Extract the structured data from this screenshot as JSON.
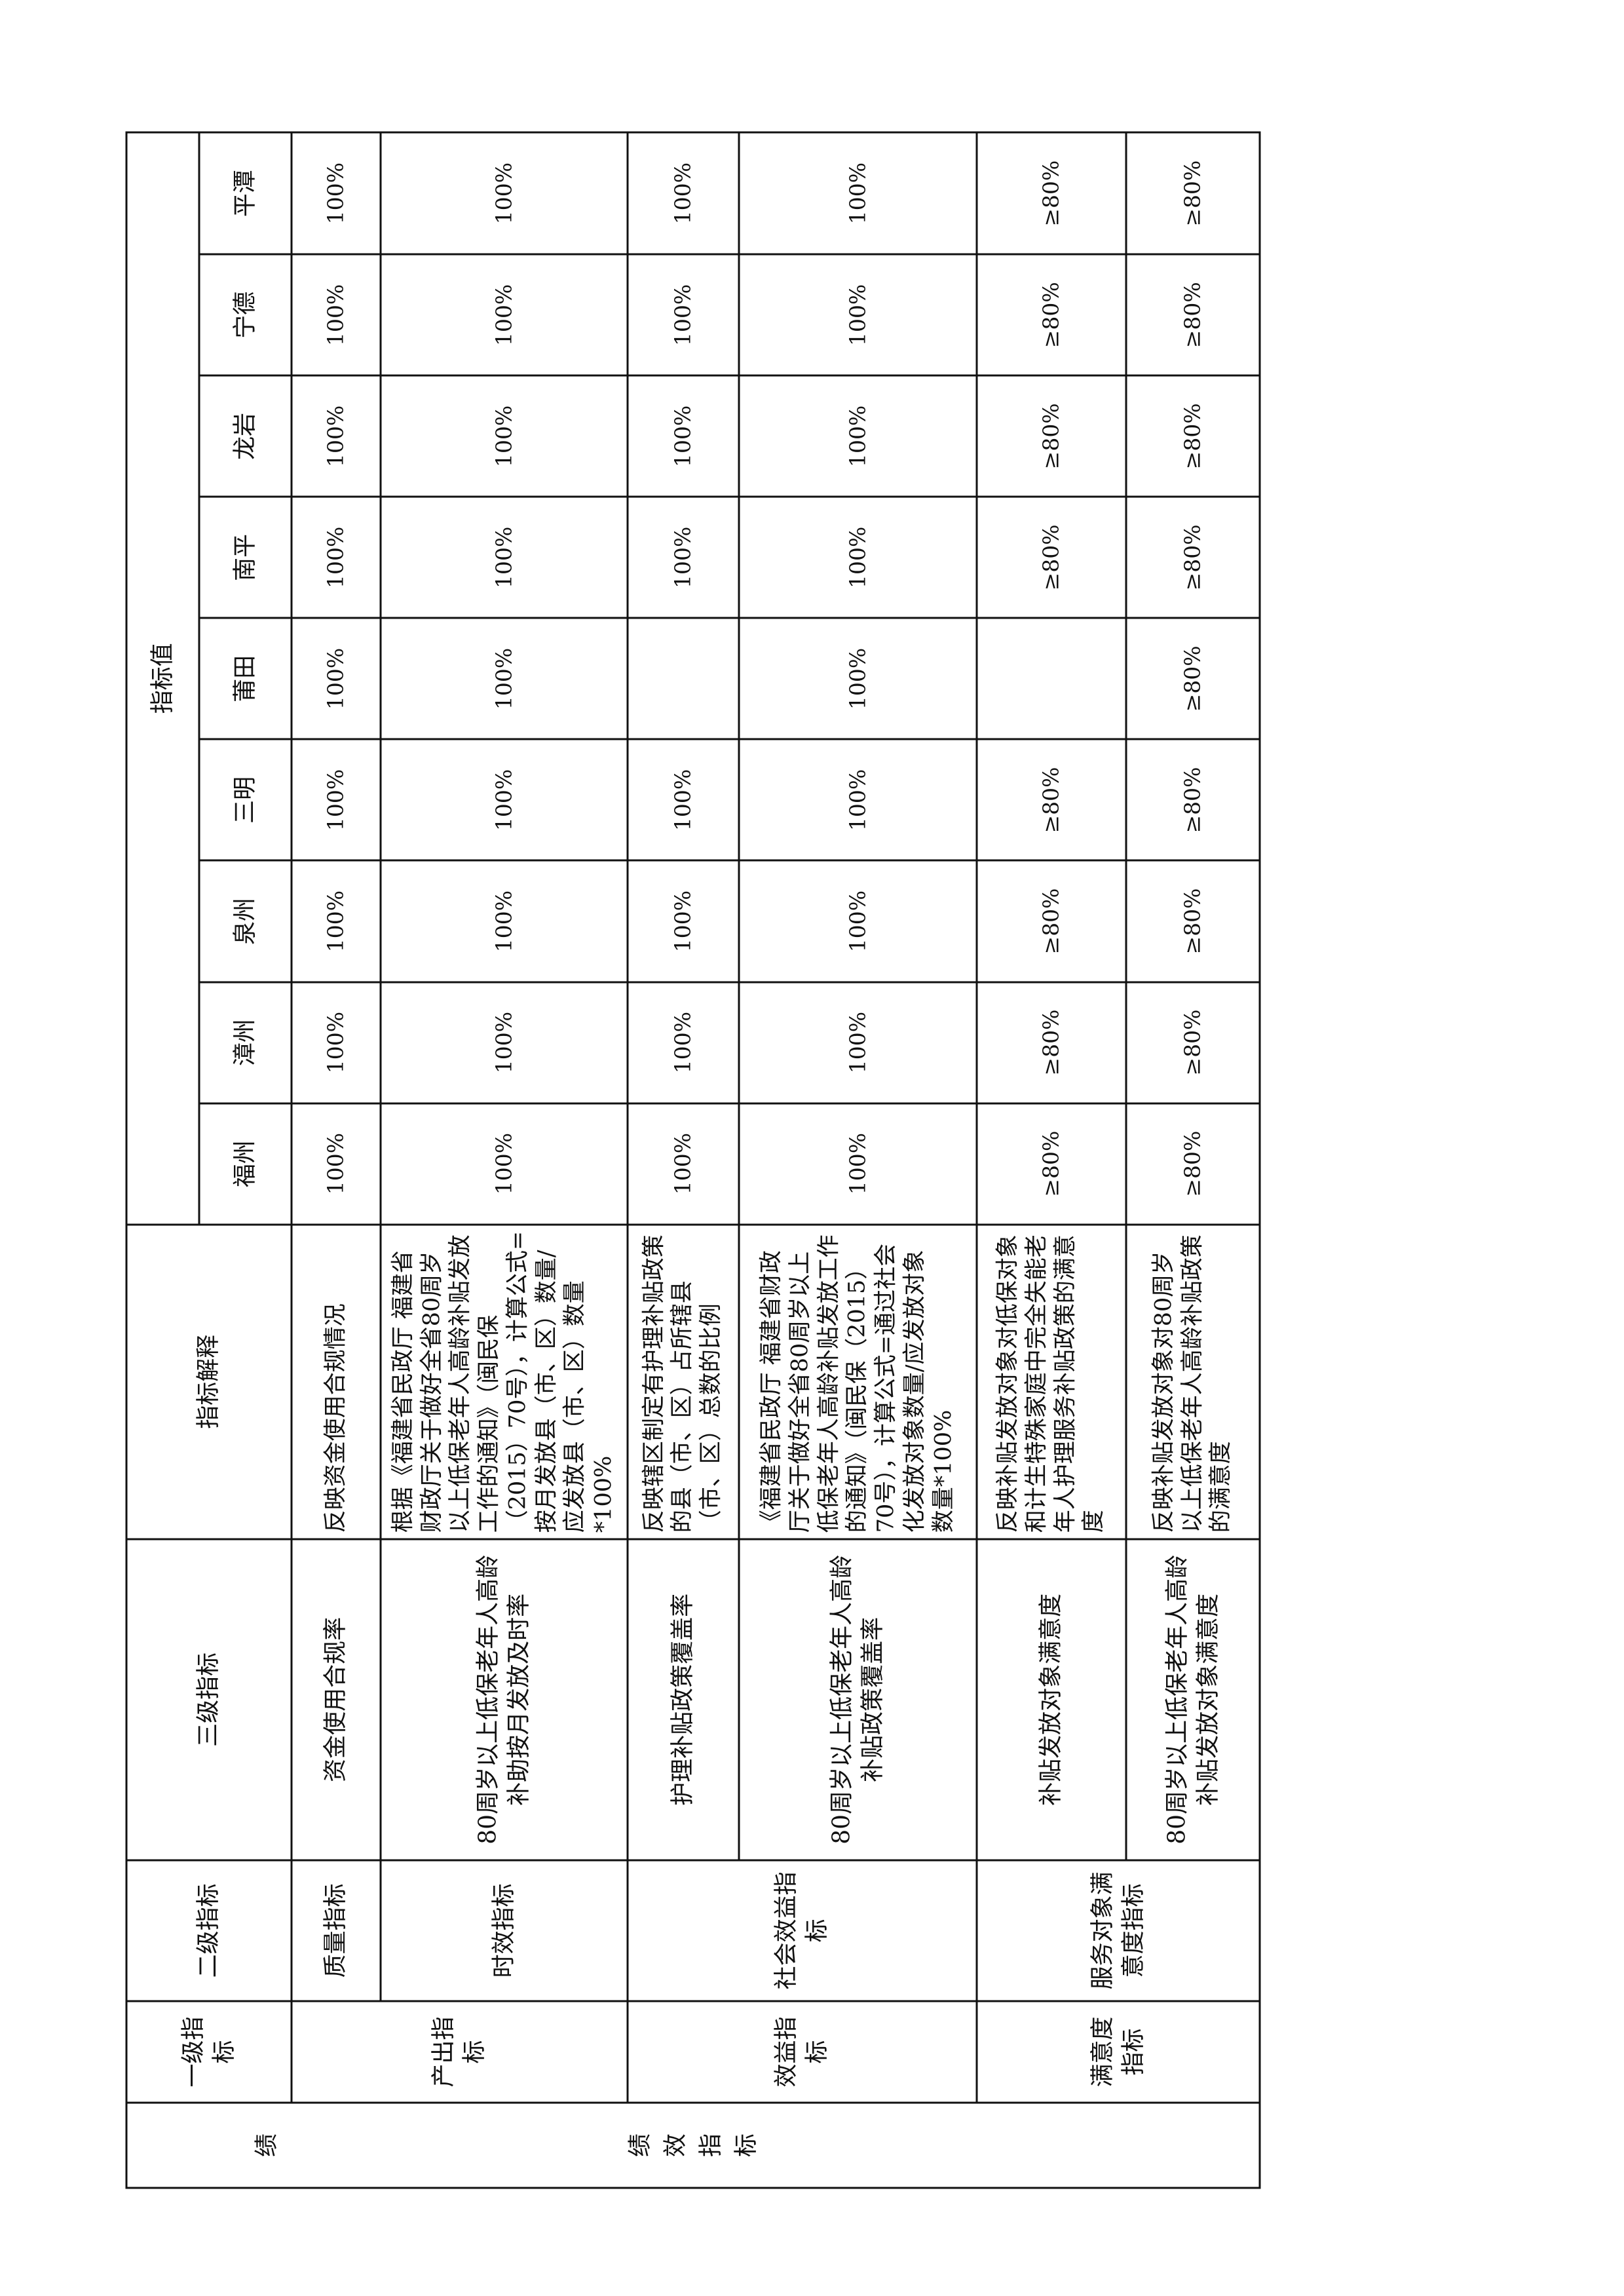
{
  "table": {
    "outer_label_fragment": "绩",
    "outer_label": "绩效指标",
    "headers": {
      "level1": "一级指标",
      "level2": "二级指标",
      "level3": "三级指标",
      "description": "指标解释",
      "values": "指标值"
    },
    "cities": [
      "福州",
      "漳州",
      "泉州",
      "三明",
      "莆田",
      "南平",
      "龙岩",
      "宁德",
      "平潭"
    ],
    "groups": [
      {
        "level1": "产出指标",
        "subgroups": [
          {
            "level2": "质量指标",
            "rows": [
              {
                "level3": "资金使用合规率",
                "description": "反映资金使用合规情况",
                "values": [
                  "100%",
                  "100%",
                  "100%",
                  "100%",
                  "100%",
                  "100%",
                  "100%",
                  "100%",
                  "100%"
                ]
              }
            ]
          },
          {
            "level2": "时效指标",
            "rows": [
              {
                "level3": "80周岁以上低保老年人高龄补助按月发放及时率",
                "description": "根据《福建省民政厅 福建省财政厅关于做好全省80周岁以上低保老年人高龄补贴发放工作的通知》（闽民保（2015）70号），计算公式=按月发放县（市、区）数量/应发放县（市、区）数量*100%",
                "values": [
                  "100%",
                  "100%",
                  "100%",
                  "100%",
                  "100%",
                  "100%",
                  "100%",
                  "100%",
                  "100%"
                ]
              }
            ]
          }
        ]
      },
      {
        "level1": "效益指标",
        "subgroups": [
          {
            "level2": "社会效益指标",
            "rows": [
              {
                "level3": "护理补贴政策覆盖率",
                "description": "反映辖区制定有护理补贴政策的县（市、区）占所辖县（市、区）总数的比例",
                "values": [
                  "100%",
                  "100%",
                  "100%",
                  "100%",
                  "",
                  "100%",
                  "100%",
                  "100%",
                  "100%"
                ]
              },
              {
                "level3": "80周岁以上低保老年人高龄补贴政策覆盖率",
                "description": "《福建省民政厅 福建省财政厅关于做好全省80周岁以上低保老年人高龄补贴发放工作的通知》（闽民保（2015）70号），计算公式=通过社会化发放对象数量/应发放对象数量*100%",
                "values": [
                  "100%",
                  "100%",
                  "100%",
                  "100%",
                  "100%",
                  "100%",
                  "100%",
                  "100%",
                  "100%"
                ]
              }
            ]
          }
        ]
      },
      {
        "level1": "满意度指标",
        "subgroups": [
          {
            "level2": "服务对象满意度指标",
            "rows": [
              {
                "level3": "补贴发放对象满意度",
                "description": "反映补贴发放对象对低保对象和计生特殊家庭中完全失能老年人护理服务补贴政策的满意度",
                "values": [
                  "≥80%",
                  "≥80%",
                  "≥80%",
                  "≥80%",
                  "",
                  "≥80%",
                  "≥80%",
                  "≥80%",
                  "≥80%"
                ]
              },
              {
                "level3": "80周岁以上低保老年人高龄补贴发放对象满意度",
                "description": "反映补贴发放对象对80周岁以上低保老年人高龄补贴政策的满意度",
                "values": [
                  "≥80%",
                  "≥80%",
                  "≥80%",
                  "≥80%",
                  "≥80%",
                  "≥80%",
                  "≥80%",
                  "≥80%",
                  "≥80%"
                ]
              }
            ]
          }
        ]
      }
    ]
  }
}
